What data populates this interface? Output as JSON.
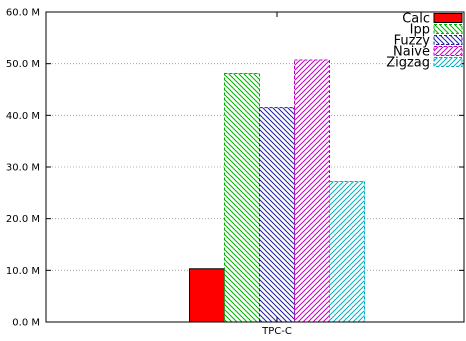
{
  "chart_data": {
    "type": "bar",
    "categories": [
      "TPC-C"
    ],
    "series": [
      {
        "name": "Calc",
        "values": [
          10.3
        ],
        "color": "#ff0000",
        "pattern": "solid"
      },
      {
        "name": "Ipp",
        "values": [
          48.1
        ],
        "color": "#00b000",
        "pattern": "hatch-down"
      },
      {
        "name": "Fuzzy",
        "values": [
          41.5
        ],
        "color": "#2020a0",
        "pattern": "hatch-down"
      },
      {
        "name": "Naive",
        "values": [
          50.7
        ],
        "color": "#c000c0",
        "pattern": "hatch-up"
      },
      {
        "name": "Zigzag",
        "values": [
          27.2
        ],
        "color": "#00b0c0",
        "pattern": "hatch-up"
      }
    ],
    "title": "",
    "xlabel": "",
    "ylabel": "",
    "ylim": [
      0,
      60
    ],
    "yticks": [
      0,
      10,
      20,
      30,
      40,
      50,
      60
    ],
    "ytick_labels": [
      "0.0 M",
      "10.0 M",
      "20.0 M",
      "30.0 M",
      "40.0 M",
      "50.0 M",
      "60.0 M"
    ],
    "grid": "horizontal dotted",
    "legend_position": "top-right"
  }
}
